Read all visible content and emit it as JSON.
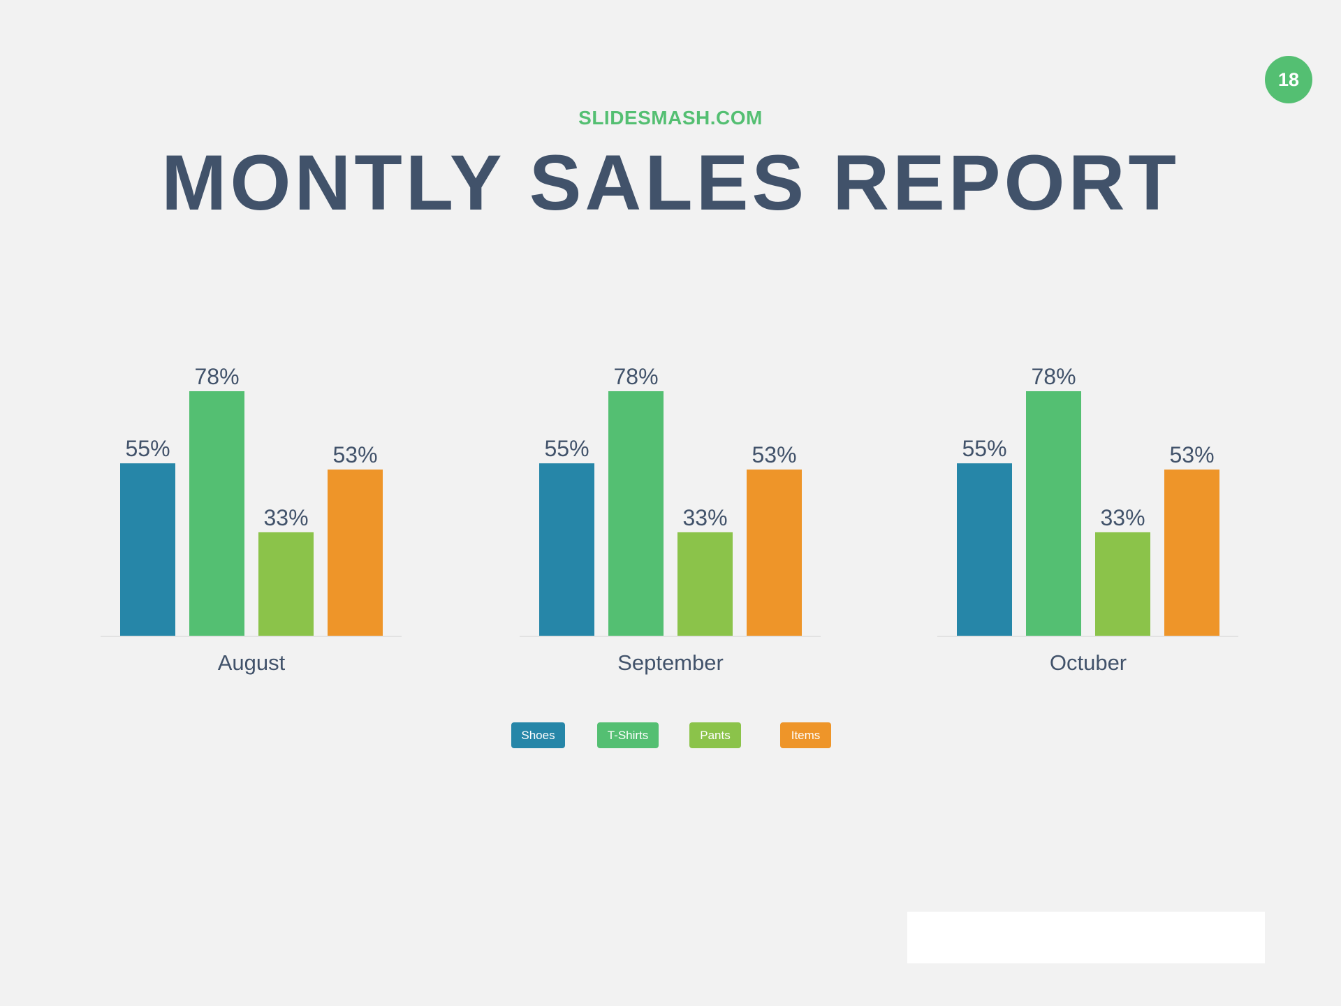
{
  "page_number": "18",
  "brand": "SLIDESMASH.COM",
  "title": "MONTLY SALES REPORT",
  "colors": {
    "shoes": "#2686a8",
    "tshirts": "#54bf72",
    "pants": "#8bc34a",
    "items": "#ee9529",
    "text": "#41526a",
    "background": "#f2f2f2"
  },
  "legend": [
    {
      "label": "Shoes",
      "color": "#2686a8"
    },
    {
      "label": "T-Shirts",
      "color": "#54bf72"
    },
    {
      "label": "Pants",
      "color": "#8bc34a"
    },
    {
      "label": "Items",
      "color": "#ee9529"
    }
  ],
  "chart_data": [
    {
      "type": "bar",
      "categories": [
        "Shoes",
        "T-Shirts",
        "Pants",
        "Items"
      ],
      "values": [
        55,
        78,
        33,
        53
      ],
      "value_labels": [
        "55%",
        "78%",
        "33%",
        "53%"
      ],
      "colors": [
        "#2686a8",
        "#54bf72",
        "#8bc34a",
        "#ee9529"
      ],
      "xlabel": "August",
      "ylim": [
        0,
        100
      ]
    },
    {
      "type": "bar",
      "categories": [
        "Shoes",
        "T-Shirts",
        "Pants",
        "Items"
      ],
      "values": [
        55,
        78,
        33,
        53
      ],
      "value_labels": [
        "55%",
        "78%",
        "33%",
        "53%"
      ],
      "colors": [
        "#2686a8",
        "#54bf72",
        "#8bc34a",
        "#ee9529"
      ],
      "xlabel": "September",
      "ylim": [
        0,
        100
      ]
    },
    {
      "type": "bar",
      "categories": [
        "Shoes",
        "T-Shirts",
        "Pants",
        "Items"
      ],
      "values": [
        55,
        78,
        33,
        53
      ],
      "value_labels": [
        "55%",
        "78%",
        "33%",
        "53%"
      ],
      "colors": [
        "#2686a8",
        "#54bf72",
        "#8bc34a",
        "#ee9529"
      ],
      "xlabel": "Octuber",
      "ylim": [
        0,
        100
      ]
    }
  ]
}
